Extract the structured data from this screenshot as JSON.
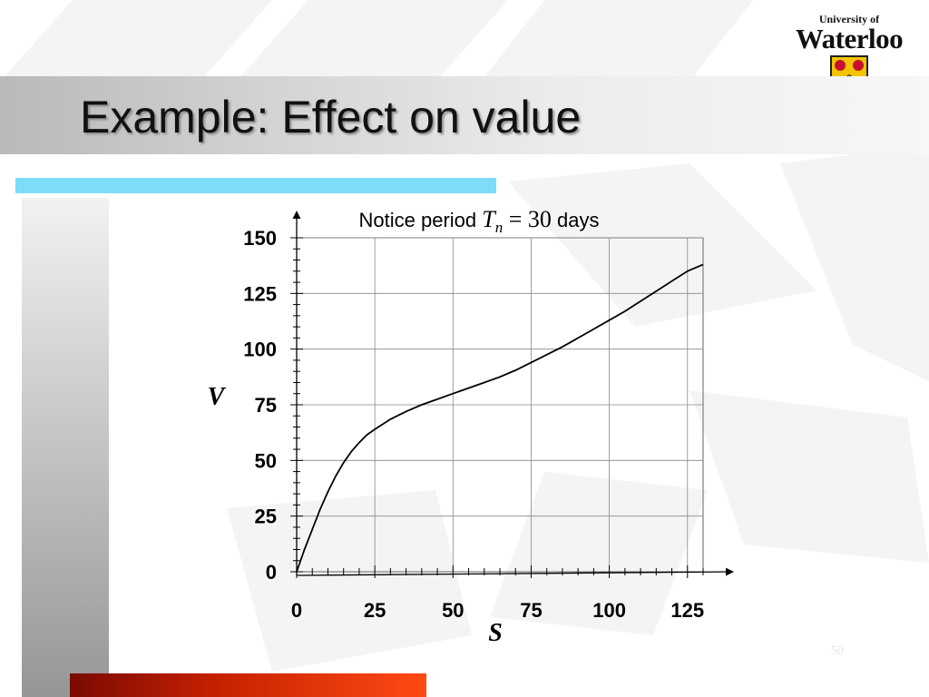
{
  "slide": {
    "title": "Example: Effect on value",
    "slide_number": "50"
  },
  "logo": {
    "line1": "University of",
    "line2": "Waterloo",
    "shield_colors": [
      "#f3c400",
      "#c8102e"
    ]
  },
  "colors": {
    "title_bar": "#c8c8c8",
    "accent_cyan": "#7fdcf8",
    "accent_red": "#d62800"
  },
  "chart_data": {
    "type": "line",
    "title_parts": {
      "prefix": "Notice period ",
      "var": "T",
      "sub": "n",
      "rest": " = 30",
      "suffix": " days"
    },
    "xlabel": "S",
    "ylabel": "V",
    "xlim": [
      0,
      130
    ],
    "ylim": [
      0,
      150
    ],
    "x_ticks": [
      0,
      25,
      50,
      75,
      100,
      125
    ],
    "y_ticks": [
      0,
      25,
      50,
      75,
      100,
      125,
      150
    ],
    "grid": true,
    "legend": "none",
    "series": [
      {
        "x": [
          0,
          2.5,
          5,
          7.5,
          10,
          12.5,
          15,
          17.5,
          20,
          22.5,
          25,
          30,
          35,
          40,
          45,
          50,
          55,
          60,
          65,
          70,
          75,
          80,
          85,
          90,
          95,
          100,
          105,
          110,
          115,
          120,
          125,
          130
        ],
        "y": [
          0,
          10,
          19,
          28,
          36,
          43,
          49,
          54,
          58,
          61.5,
          64,
          68.5,
          72,
          75,
          77.5,
          80,
          82.5,
          85,
          87.5,
          90.5,
          94,
          97.5,
          101,
          105,
          109,
          113,
          117,
          121.5,
          126,
          130.5,
          135,
          138
        ]
      }
    ]
  }
}
